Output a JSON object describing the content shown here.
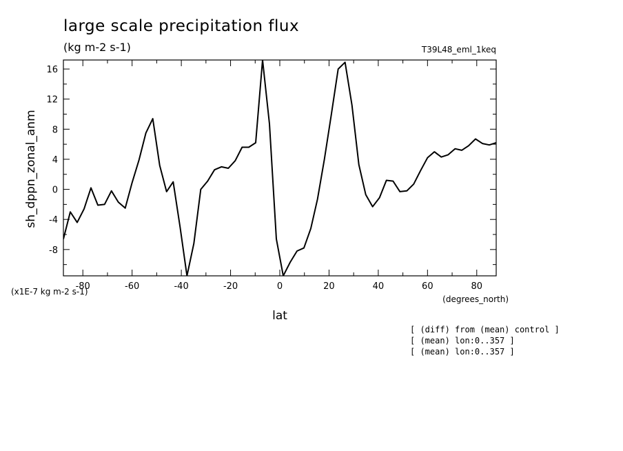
{
  "chart_data": {
    "type": "line",
    "title": "large scale precipitation flux",
    "subtitle": "(kg m-2 s-1)",
    "experiment": "T39L48_eml_1keq",
    "ylabel": "sh_dppn_zonal_anm",
    "xlabel": "lat",
    "x_units": "(degrees_north)",
    "y_scale_note": "(x1E-7 kg m-2 s-1)",
    "xlim": [
      -87.9,
      87.9
    ],
    "ylim": [
      -11.5,
      17.2
    ],
    "x_ticks": [
      -80,
      -60,
      -40,
      -20,
      0,
      20,
      40,
      60,
      80
    ],
    "x_tick_labels": [
      "-80",
      "-60",
      "-40",
      "-20",
      "0",
      "20",
      "40",
      "60",
      "80"
    ],
    "y_ticks": [
      -8,
      -4,
      0,
      4,
      8,
      12,
      16
    ],
    "y_tick_labels": [
      "-8",
      "-4",
      "0",
      "4",
      "8",
      "12",
      "16"
    ],
    "grid": false,
    "notes": [
      "[ (diff) from (mean) control ]",
      "[ (mean) lon:0..357 ]",
      "[ (mean) lon:0..357 ]"
    ],
    "series": [
      {
        "x": [
          -87.9,
          -85.1,
          -82.3,
          -79.5,
          -76.7,
          -73.9,
          -71.2,
          -68.4,
          -65.6,
          -62.8,
          -60.0,
          -57.2,
          -54.4,
          -51.6,
          -48.8,
          -46.0,
          -43.3,
          -40.5,
          -37.7,
          -34.9,
          -32.1,
          -29.3,
          -26.5,
          -23.7,
          -20.9,
          -18.1,
          -15.3,
          -12.6,
          -9.8,
          -7.0,
          -4.2,
          -1.4,
          1.4,
          4.2,
          7.0,
          9.8,
          12.6,
          15.3,
          18.1,
          20.9,
          23.7,
          26.5,
          29.3,
          32.1,
          34.9,
          37.7,
          40.5,
          43.3,
          46.0,
          48.8,
          51.6,
          54.4,
          57.2,
          60.0,
          62.8,
          65.6,
          68.4,
          71.2,
          73.9,
          76.7,
          79.5,
          82.3,
          85.1,
          87.9
        ],
        "y": [
          -6.6,
          -3.0,
          -4.4,
          -2.6,
          0.2,
          -2.1,
          -2.0,
          -0.2,
          -1.7,
          -2.5,
          0.9,
          3.9,
          7.5,
          9.4,
          3.2,
          -0.3,
          1.0,
          -5.0,
          -11.5,
          -7.2,
          0.0,
          1.1,
          2.6,
          3.0,
          2.8,
          3.8,
          5.6,
          5.6,
          6.2,
          17.2,
          8.7,
          -6.6,
          -11.5,
          -9.7,
          -8.2,
          -7.8,
          -5.2,
          -1.3,
          4.0,
          9.9,
          16.0,
          16.9,
          11.2,
          3.3,
          -0.7,
          -2.3,
          -1.1,
          1.2,
          1.1,
          -0.3,
          -0.2,
          0.7,
          2.5,
          4.2,
          5.0,
          4.3,
          4.6,
          5.4,
          5.2,
          5.8,
          6.7,
          6.1,
          5.9,
          6.2
        ]
      }
    ]
  }
}
